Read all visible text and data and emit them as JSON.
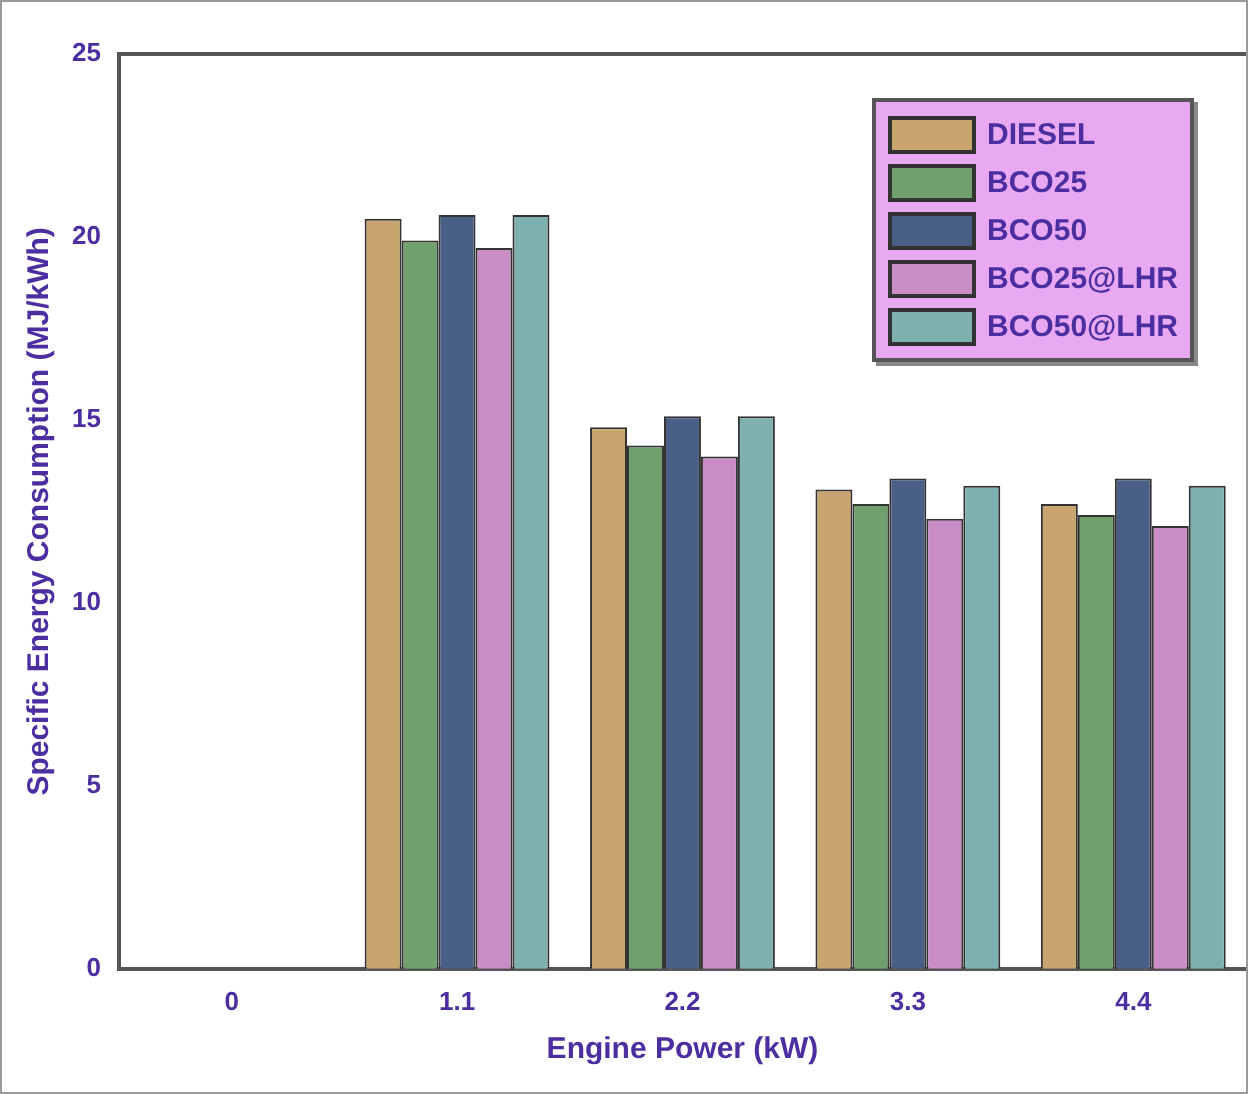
{
  "chart_data": {
    "type": "bar",
    "xlabel": "Engine Power (kW)",
    "ylabel": "Specific Energy Consumption (MJ/kWh)",
    "categories": [
      "0",
      "1.1",
      "2.2",
      "3.3",
      "4.4"
    ],
    "series": [
      {
        "name": "DIESEL",
        "color": "#c8a46e",
        "values": [
          null,
          20.5,
          14.8,
          13.1,
          12.7
        ]
      },
      {
        "name": "BCO25",
        "color": "#6fa06e",
        "values": [
          null,
          19.9,
          14.3,
          12.7,
          12.4
        ]
      },
      {
        "name": "BCO50",
        "color": "#4a5f86",
        "values": [
          null,
          20.6,
          15.1,
          13.4,
          13.4
        ]
      },
      {
        "name": "BCO25@LHR",
        "color": "#c98cc4",
        "values": [
          null,
          19.7,
          14.0,
          12.3,
          12.1
        ]
      },
      {
        "name": "BCO50@LHR",
        "color": "#7fb0b0",
        "values": [
          null,
          20.6,
          15.1,
          13.2,
          13.2
        ]
      }
    ],
    "ylim": [
      0,
      25
    ],
    "yticks": [
      0,
      5,
      10,
      15,
      20,
      25
    ],
    "grid": false,
    "legend": "top right"
  }
}
